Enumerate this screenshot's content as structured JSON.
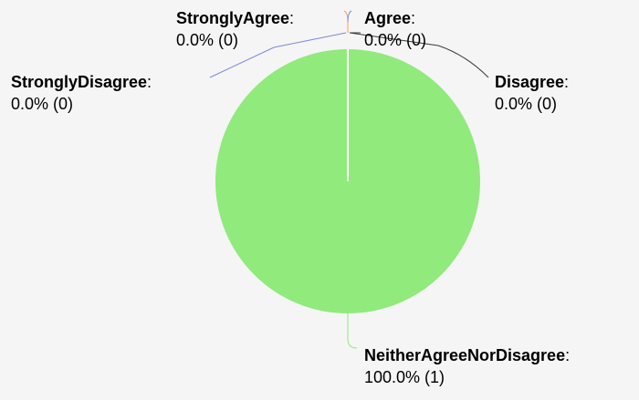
{
  "chart_data": {
    "type": "pie",
    "slices": [
      {
        "name": "StronglyAgree",
        "value": 0,
        "percent_text": "0.0% (0)",
        "color": "#f0a35e"
      },
      {
        "name": "Agree",
        "value": 0,
        "percent_text": "0.0% (0)",
        "color": "#3a3a3a"
      },
      {
        "name": "Disagree",
        "value": 0,
        "percent_text": "0.0% (0)",
        "color": "#3a3a3a"
      },
      {
        "name": "NeitherAgreeNorDisagree",
        "value": 1,
        "percent_text": "100.0% (1)",
        "color": "#90ea7c"
      },
      {
        "name": "StronglyDisagree",
        "value": 0,
        "percent_text": "0.0% (0)",
        "color": "#7b88d8"
      }
    ]
  }
}
